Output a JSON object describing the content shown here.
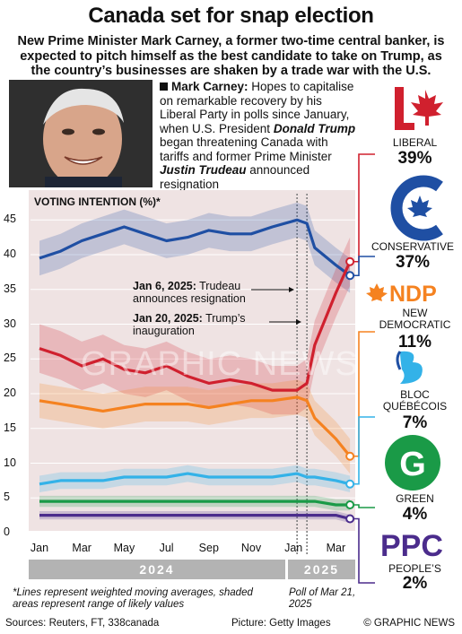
{
  "header": {
    "title": "Canada set for snap election",
    "subtitle": "New Prime Minister Mark Carney, a former two-time central banker, is expected to pitch himself as the best candidate to take on Trump, as the country’s businesses are shaken by a trade war with the U.S."
  },
  "caption": {
    "name": "Mark Carney:",
    "text1": " Hopes to capitalise on remarkable recovery by his Liberal Party in polls since January, when U.S. President ",
    "trump": "Donald Trump",
    "text2": " began threatening Canada with tariffs and former Prime Minister ",
    "trudeau": "Justin Trudeau",
    "text3": " announced resignation"
  },
  "annotations": {
    "jan6_date": "Jan 6, 2025:",
    "jan6_text": " Trudeau announces resignation",
    "jan20_date": "Jan 20, 2025:",
    "jan20_text": " Trump’s inauguration"
  },
  "parties": [
    {
      "name": "LIBERAL",
      "value": "39%",
      "color": "#d0202e"
    },
    {
      "name": "CONSERVATIVE",
      "value": "37%",
      "color": "#1f4fa3"
    },
    {
      "name": "NEW DEMOCRATIC",
      "value": "11%",
      "color": "#f58220"
    },
    {
      "name": "BLOC QUÉBÉCOIS",
      "value": "7%",
      "color": "#33b2e8"
    },
    {
      "name": "GREEN",
      "value": "4%",
      "color": "#1a9a47"
    },
    {
      "name": "PEOPLE’S",
      "value": "2%",
      "color": "#4b2c8c"
    }
  ],
  "logos": {
    "ndp": "NDP",
    "ppc": "PPC",
    "green": "G"
  },
  "years": [
    "2024",
    "2025"
  ],
  "notes": {
    "method": "*Lines represent weighted moving averages, shaded areas represent range of likely values",
    "poll": "Poll of Mar 21, 2025"
  },
  "footer": {
    "sources": "Sources: Reuters, FT, 338canada",
    "picture": "Picture: Getty Images",
    "credit": "© GRAPHIC NEWS"
  },
  "watermark": "GRAPHIC NEWS",
  "chart_data": {
    "type": "line",
    "title": "VOTING INTENTION (%)*",
    "ylim": [
      0,
      47
    ],
    "yticks": [
      0,
      5,
      10,
      15,
      20,
      25,
      30,
      35,
      40,
      45
    ],
    "xticks": [
      "Jan",
      "Mar",
      "May",
      "Jul",
      "Sep",
      "Nov",
      "Jan",
      "Mar"
    ],
    "x": [
      "2024-01",
      "2024-02",
      "2024-03",
      "2024-04",
      "2024-05",
      "2024-06",
      "2024-07",
      "2024-08",
      "2024-09",
      "2024-10",
      "2024-11",
      "2024-12",
      "2025-01-06",
      "2025-01-20",
      "2025-02",
      "2025-03",
      "2025-03-21"
    ],
    "series": [
      {
        "name": "Conservative",
        "color": "#1f4fa3",
        "values": [
          39.5,
          40.5,
          42,
          43,
          44,
          43,
          42,
          42.5,
          43.5,
          43,
          43,
          44,
          45,
          44.5,
          41,
          38.5,
          37
        ]
      },
      {
        "name": "Liberal",
        "color": "#d0202e",
        "values": [
          26.5,
          25.5,
          24,
          25,
          23.5,
          23,
          24,
          22.5,
          21.5,
          22,
          21.5,
          20.5,
          20.5,
          21.5,
          27,
          34.5,
          39
        ]
      },
      {
        "name": "NDP",
        "color": "#f58220",
        "values": [
          19,
          18.5,
          18,
          17.5,
          18,
          18.5,
          18.5,
          18.5,
          18,
          18.5,
          19,
          19,
          19.5,
          19,
          16.5,
          13.5,
          11
        ]
      },
      {
        "name": "Bloc Québécois",
        "color": "#33b2e8",
        "values": [
          7,
          7.5,
          7.5,
          7.5,
          8,
          8,
          8,
          8.5,
          8,
          8,
          8,
          8,
          8.5,
          8,
          8,
          7.5,
          7
        ]
      },
      {
        "name": "Green",
        "color": "#1a9a47",
        "values": [
          4.5,
          4.5,
          4.5,
          4.5,
          4.5,
          4.5,
          4.5,
          4.5,
          4.5,
          4.5,
          4.5,
          4.5,
          4.5,
          4.5,
          4.5,
          4,
          4
        ]
      },
      {
        "name": "People’s",
        "color": "#4b2c8c",
        "values": [
          2.5,
          2.5,
          2.5,
          2.5,
          2.5,
          2.5,
          2.5,
          2.5,
          2.5,
          2.5,
          2.5,
          2.5,
          2.5,
          2.5,
          2.5,
          2.5,
          2
        ]
      }
    ],
    "bands": [
      2.5,
      3.5,
      2.5,
      1.2,
      0.8,
      0.6
    ]
  }
}
